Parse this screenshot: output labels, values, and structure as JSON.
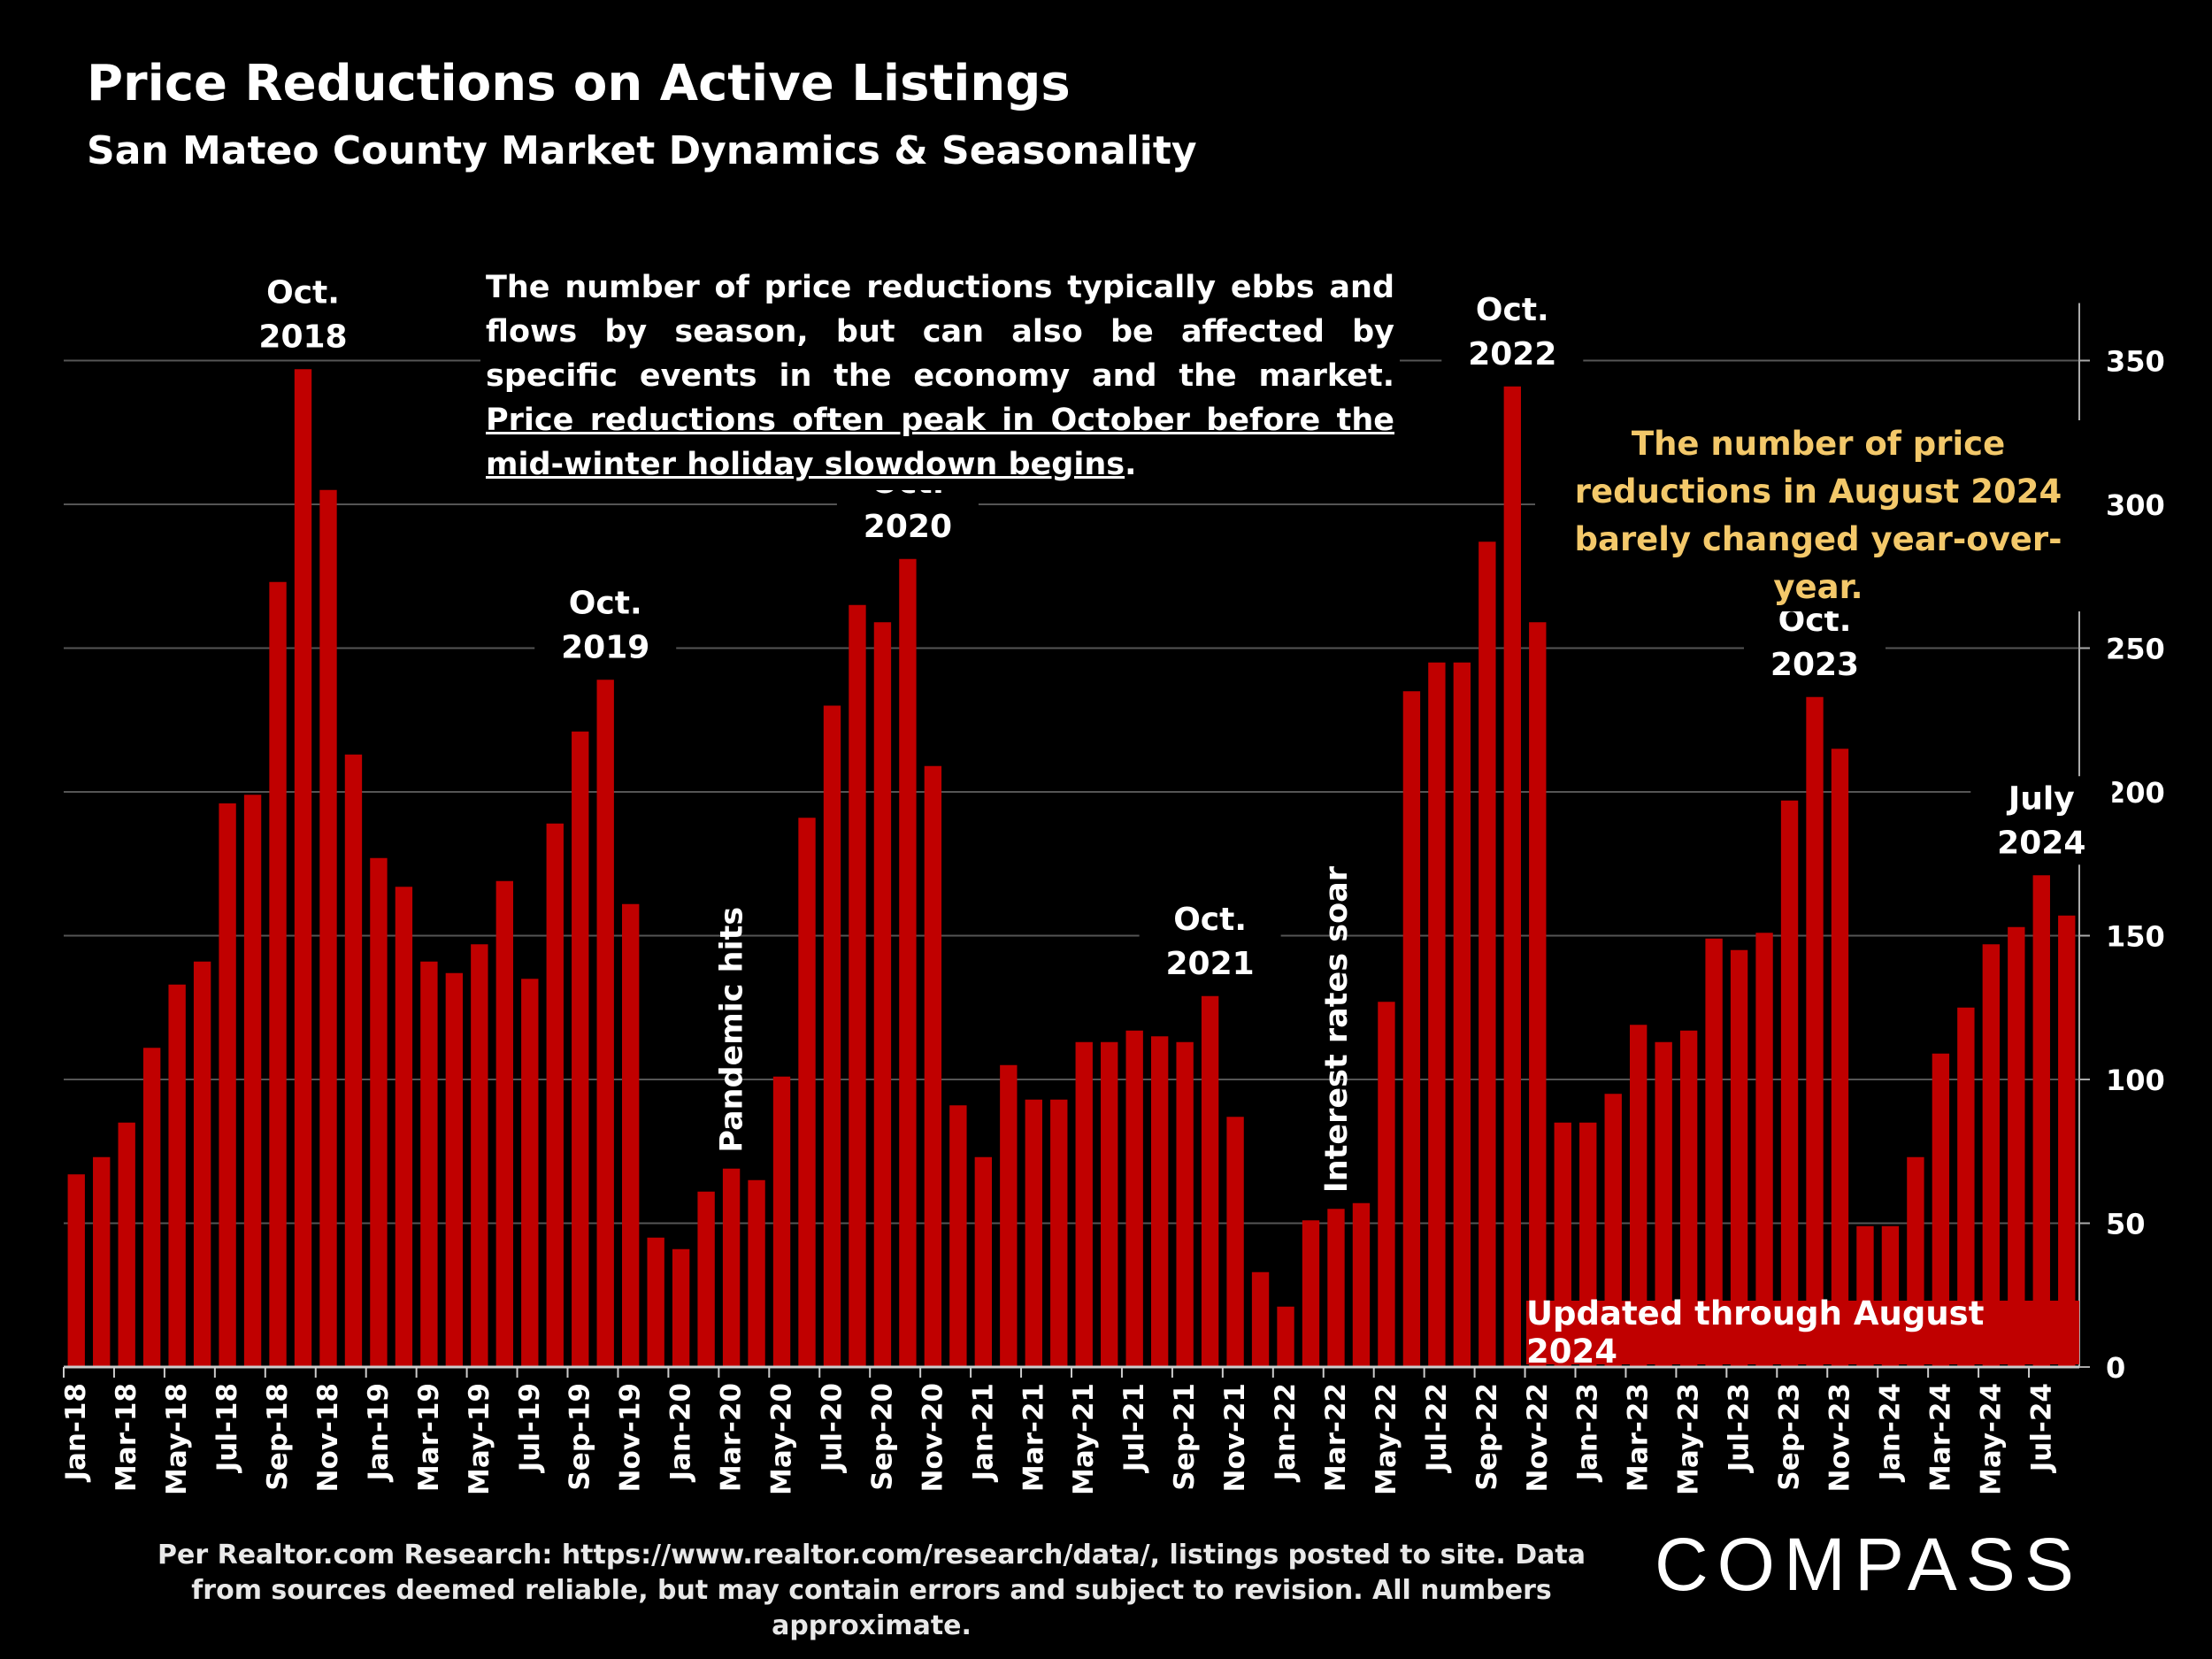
{
  "title": "Price Reductions on Active Listings",
  "subtitle": "San Mateo County Market Dynamics & Seasonality",
  "note_plain": "The number of price reductions typically ebbs and flows by season, but can also be affected by specific events in the economy and the market. ",
  "note_underlined": "Price reductions often peak in October before the mid-winter holiday slowdown begins",
  "note_end": ".",
  "callout": "The number of price reductions in August 2024 barely changed year-over-year.",
  "updated_label": "Updated through August 2024",
  "source": "Per Realtor.com Research:  https://www.realtor.com/research/data/, listings posted to site. Data from sources deemed reliable, but may contain errors and subject to revision. All numbers approximate.",
  "logo": "COMPASS",
  "colors": {
    "bar": "#c00000",
    "callout": "#f3c86a",
    "grid": "#555555"
  },
  "chart_data": {
    "type": "bar",
    "ylim": [
      0,
      370
    ],
    "yticks": [
      0,
      50,
      100,
      150,
      200,
      250,
      300,
      350
    ],
    "ytick_labels": [
      "0",
      "50",
      "100",
      "150",
      "200",
      "250",
      "300",
      "350"
    ],
    "grid": true,
    "categories": [
      "Jan-18",
      "Feb-18",
      "Mar-18",
      "Apr-18",
      "May-18",
      "Jun-18",
      "Jul-18",
      "Aug-18",
      "Sep-18",
      "Oct-18",
      "Nov-18",
      "Dec-18",
      "Jan-19",
      "Feb-19",
      "Mar-19",
      "Apr-19",
      "May-19",
      "Jun-19",
      "Jul-19",
      "Aug-19",
      "Sep-19",
      "Oct-19",
      "Nov-19",
      "Dec-19",
      "Jan-20",
      "Feb-20",
      "Mar-20",
      "Apr-20",
      "May-20",
      "Jun-20",
      "Jul-20",
      "Aug-20",
      "Sep-20",
      "Oct-20",
      "Nov-20",
      "Dec-20",
      "Jan-21",
      "Feb-21",
      "Mar-21",
      "Apr-21",
      "May-21",
      "Jun-21",
      "Jul-21",
      "Aug-21",
      "Sep-21",
      "Oct-21",
      "Nov-21",
      "Dec-21",
      "Jan-22",
      "Feb-22",
      "Mar-22",
      "Apr-22",
      "May-22",
      "Jun-22",
      "Jul-22",
      "Aug-22",
      "Sep-22",
      "Oct-22",
      "Nov-22",
      "Dec-22",
      "Jan-23",
      "Feb-23",
      "Mar-23",
      "Apr-23",
      "May-23",
      "Jun-23",
      "Jul-23",
      "Aug-23",
      "Sep-23",
      "Oct-23",
      "Nov-23",
      "Dec-23",
      "Jan-24",
      "Feb-24",
      "Mar-24",
      "Apr-24",
      "May-24",
      "Jun-24",
      "Jul-24",
      "Aug-24"
    ],
    "tick_labels": [
      "Jan-18",
      "",
      "Mar-18",
      "",
      "May-18",
      "",
      "Jul-18",
      "",
      "Sep-18",
      "",
      "Nov-18",
      "",
      "Jan-19",
      "",
      "Mar-19",
      "",
      "May-19",
      "",
      "Jul-19",
      "",
      "Sep-19",
      "",
      "Nov-19",
      "",
      "Jan-20",
      "",
      "Mar-20",
      "",
      "May-20",
      "",
      "Jul-20",
      "",
      "Sep-20",
      "",
      "Nov-20",
      "",
      "Jan-21",
      "",
      "Mar-21",
      "",
      "May-21",
      "",
      "Jul-21",
      "",
      "Sep-21",
      "",
      "Nov-21",
      "",
      "Jan-22",
      "",
      "Mar-22",
      "",
      "May-22",
      "",
      "Jul-22",
      "",
      "Sep-22",
      "",
      "Nov-22",
      "",
      "Jan-23",
      "",
      "Mar-23",
      "",
      "May-23",
      "",
      "Jul-23",
      "",
      "Sep-23",
      "",
      "Nov-23",
      "",
      "Jan-24",
      "",
      "Mar-24",
      "",
      "May-24",
      "",
      "Jul-24",
      ""
    ],
    "values": [
      67,
      73,
      85,
      111,
      133,
      141,
      196,
      199,
      273,
      347,
      305,
      213,
      177,
      167,
      141,
      137,
      147,
      169,
      135,
      189,
      221,
      239,
      161,
      45,
      41,
      61,
      69,
      65,
      101,
      191,
      230,
      265,
      259,
      281,
      209,
      91,
      73,
      105,
      93,
      93,
      113,
      113,
      117,
      115,
      113,
      129,
      87,
      33,
      21,
      51,
      55,
      57,
      127,
      235,
      245,
      245,
      287,
      341,
      259,
      85,
      85,
      95,
      119,
      113,
      117,
      149,
      145,
      151,
      197,
      233,
      215,
      49,
      49,
      73,
      109,
      125,
      147,
      153,
      171,
      157
    ],
    "peak_labels": [
      {
        "index": 9,
        "text": [
          "Oct.",
          "2018"
        ]
      },
      {
        "index": 21,
        "text": [
          "Oct.",
          "2019"
        ]
      },
      {
        "index": 33,
        "text": [
          "Oct.",
          "2020"
        ]
      },
      {
        "index": 45,
        "text": [
          "Oct.",
          "2021"
        ]
      },
      {
        "index": 57,
        "text": [
          "Oct.",
          "2022"
        ]
      },
      {
        "index": 69,
        "text": [
          "Oct.",
          "2023"
        ]
      },
      {
        "index": 78,
        "text": [
          "July",
          "2024"
        ]
      }
    ],
    "event_labels": [
      {
        "index": 26,
        "text": "Pandemic hits"
      },
      {
        "index": 50,
        "text": "Interest rates soar"
      }
    ]
  }
}
